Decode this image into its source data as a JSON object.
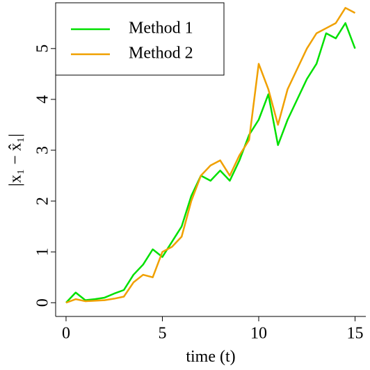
{
  "chart_data": {
    "type": "line",
    "xlabel": "time (t)",
    "ylabel": "|x₁ − x̂₁|",
    "x": [
      0,
      0.5,
      1,
      1.5,
      2,
      2.5,
      3,
      3.5,
      4,
      4.5,
      5,
      5.5,
      6,
      6.5,
      7,
      7.5,
      8,
      8.5,
      9,
      9.5,
      10,
      10.5,
      11,
      11.5,
      12,
      12.5,
      13,
      13.5,
      14,
      14.5,
      15
    ],
    "series": [
      {
        "name": "Method 1",
        "color": "#00e000",
        "values": [
          0,
          0.2,
          0.05,
          0.07,
          0.1,
          0.18,
          0.25,
          0.55,
          0.75,
          1.05,
          0.9,
          1.2,
          1.5,
          2.1,
          2.5,
          2.4,
          2.6,
          2.4,
          2.8,
          3.3,
          3.6,
          4.1,
          3.1,
          3.6,
          4.0,
          4.4,
          4.7,
          5.3,
          5.2,
          5.5,
          5.0
        ]
      },
      {
        "name": "Method 2",
        "color": "#f0a000",
        "values": [
          0,
          0.07,
          0.03,
          0.04,
          0.05,
          0.08,
          0.12,
          0.4,
          0.55,
          0.5,
          1.0,
          1.1,
          1.3,
          2.0,
          2.5,
          2.7,
          2.8,
          2.5,
          2.9,
          3.2,
          4.7,
          4.2,
          3.5,
          4.2,
          4.6,
          5.0,
          5.3,
          5.4,
          5.5,
          5.8,
          5.7
        ]
      }
    ],
    "xlim": [
      -0.54,
      15.56
    ],
    "ylim": [
      -0.27,
      5.9
    ],
    "xticks": [
      0,
      5,
      10,
      15
    ],
    "yticks": [
      0,
      1,
      2,
      3,
      4,
      5
    ],
    "legend": "upper left"
  }
}
